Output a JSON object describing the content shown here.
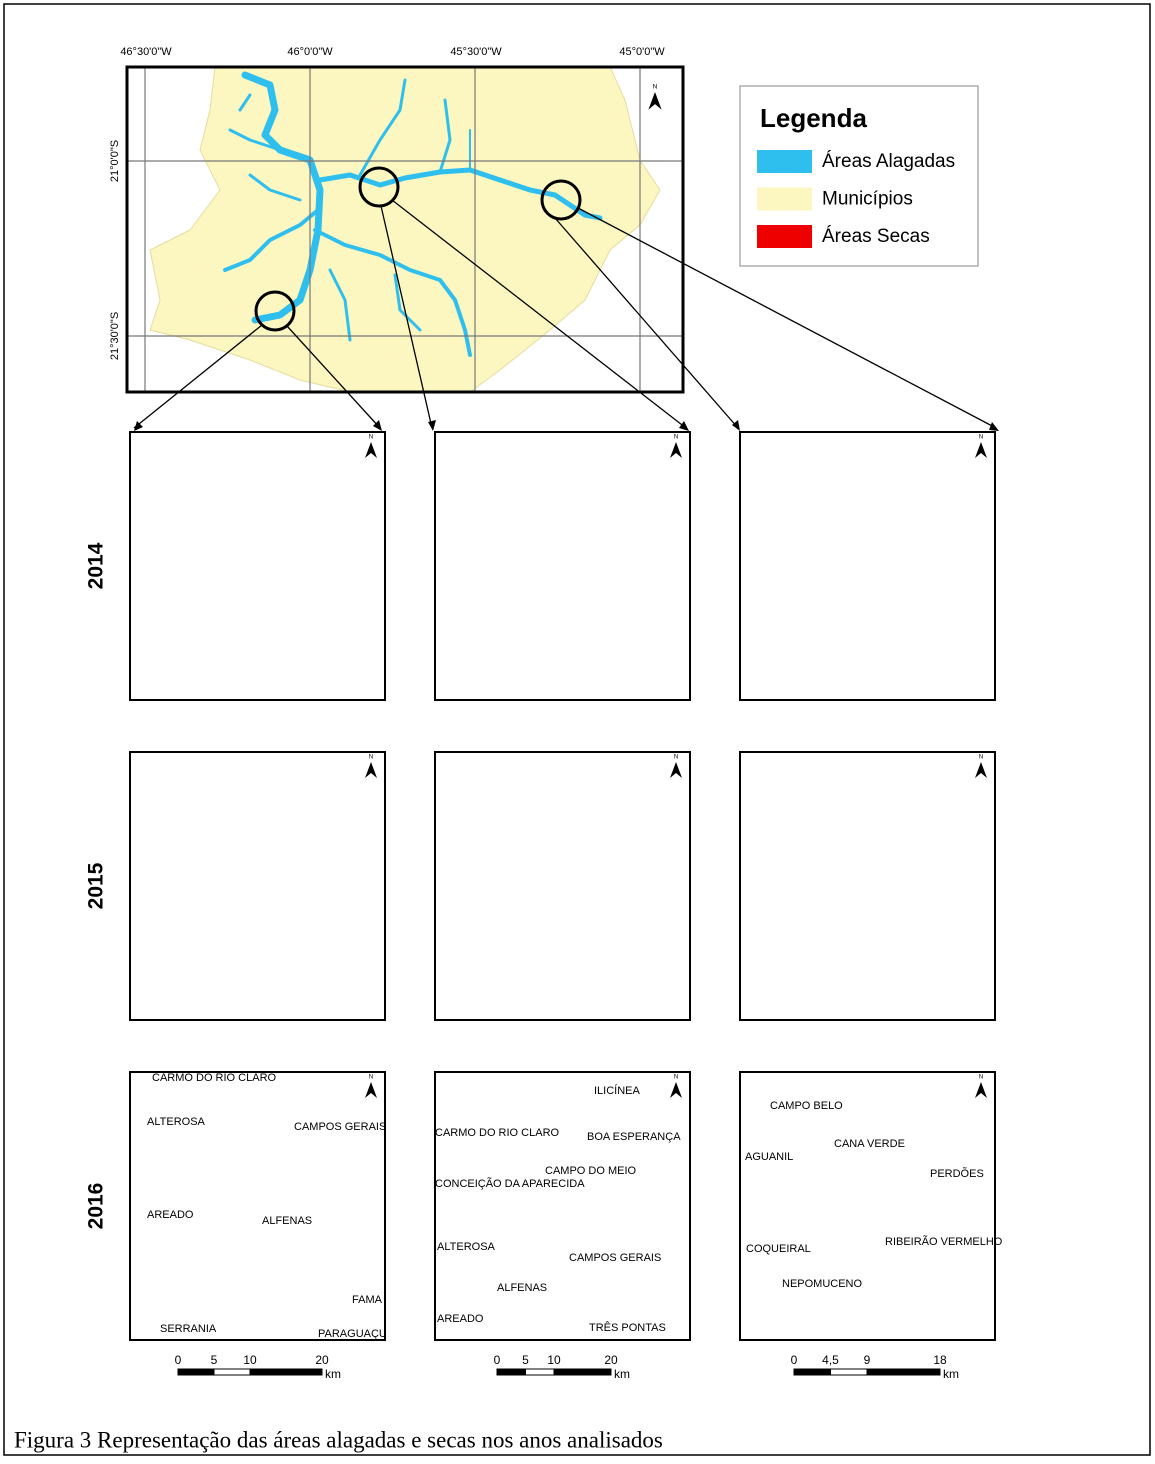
{
  "main_map": {
    "lon_labels": [
      "46°30'0\"W",
      "46°0'0\"W",
      "45°30'0\"W",
      "45°0'0\"W"
    ],
    "lat_labels": [
      "21°0'0\"S",
      "21°30'0\"S"
    ],
    "north": "N"
  },
  "legend": {
    "title": "Legenda",
    "items": [
      {
        "label": "Áreas Alagadas",
        "color": "#2fbfef"
      },
      {
        "label": "Municípios",
        "color": "#fcf7c0"
      },
      {
        "label": "Áreas Secas",
        "color": "#ee0000"
      }
    ]
  },
  "years": [
    "2014",
    "2015",
    "2016"
  ],
  "place_names": [
    [
      "CARMO DO RIO CLARO",
      "ALTEROSA",
      "CAMPOS GERAIS",
      "AREADO",
      "ALFENAS",
      "FAMA",
      "SERRANIA",
      "PARAGUAÇU"
    ],
    [
      "ILICÍNEA",
      "CARMO DO RIO CLARO",
      "BOA ESPERANÇA",
      "CAMPO DO MEIO",
      "CONCEIÇÃO DA APARECIDA",
      "ALTEROSA",
      "CAMPOS GERAIS",
      "ALFENAS",
      "AREADO",
      "TRÊS PONTAS"
    ],
    [
      "CAMPO BELO",
      "CANA VERDE",
      "AGUANIL",
      "PERDÕES",
      "COQUEIRAL",
      "RIBEIRÃO VERMELHO",
      "NEPOMUCENO"
    ]
  ],
  "scale_bars": [
    {
      "ticks": [
        0,
        5,
        10,
        20
      ],
      "unit": "km"
    },
    {
      "ticks": [
        0,
        5,
        10,
        20
      ],
      "unit": "km"
    },
    {
      "ticks": [
        0,
        {
          "value": 4.5,
          "label": "4,5"
        },
        9,
        18
      ],
      "unit": "km"
    }
  ],
  "caption": "Figura 3 Representação das áreas alagadas e secas nos anos analisados"
}
